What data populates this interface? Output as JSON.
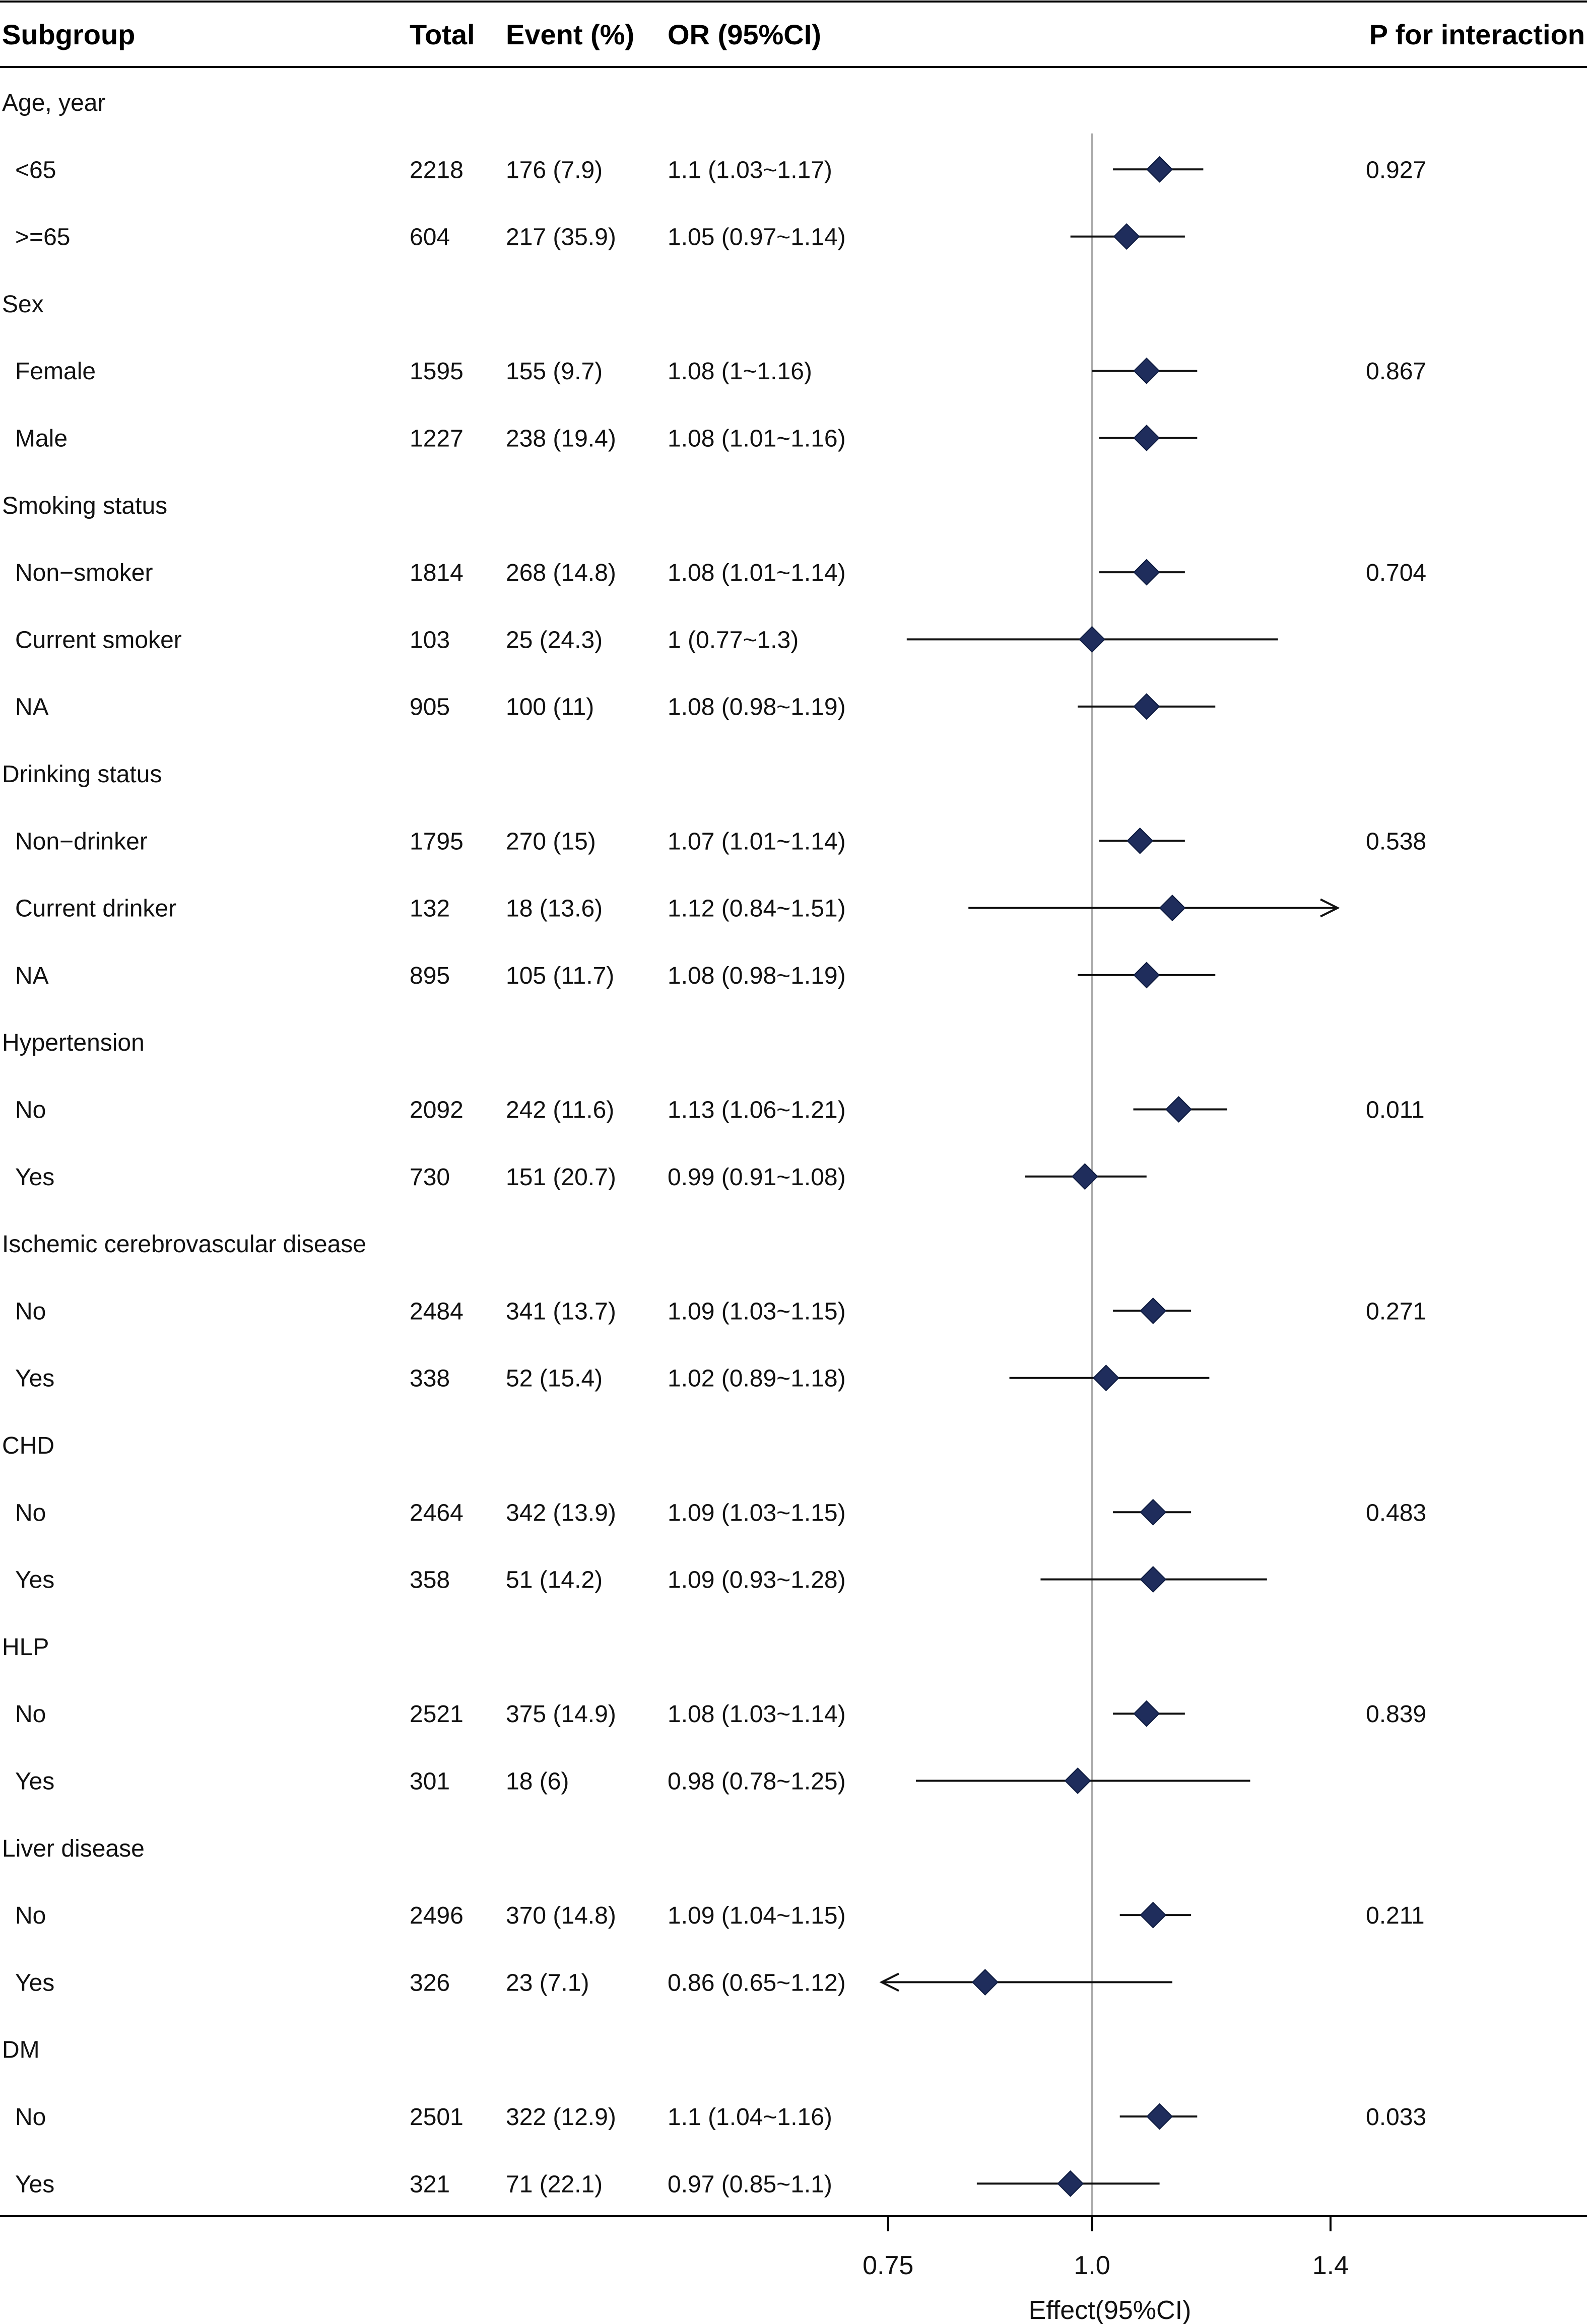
{
  "chart_data": {
    "type": "forest",
    "columns": {
      "subgroup": "Subgroup",
      "total": "Total",
      "event": "Event (%)",
      "or": "OR (95%CI)",
      "p": "P for interaction"
    },
    "xlabel": "Effect(95%CI)",
    "ticks": [
      "0.75",
      "1.0",
      "1.4"
    ],
    "tick_values": [
      0.75,
      1.0,
      1.4
    ],
    "reference_value": 1.0,
    "colors": {
      "marker": "#1f2d5c",
      "reference_line": "#aaaaaa",
      "line": "#111111"
    },
    "rows": [
      {
        "kind": "group",
        "label": "Age, year"
      },
      {
        "kind": "item",
        "label": "<65",
        "total": "2218",
        "event": "176 (7.9)",
        "or_text": "1.1 (1.03~1.17)",
        "or": 1.1,
        "lo": 1.03,
        "hi": 1.17,
        "p": "0.927"
      },
      {
        "kind": "item",
        "label": ">=65",
        "total": "604",
        "event": "217 (35.9)",
        "or_text": "1.05 (0.97~1.14)",
        "or": 1.05,
        "lo": 0.97,
        "hi": 1.14,
        "p": ""
      },
      {
        "kind": "group",
        "label": "Sex"
      },
      {
        "kind": "item",
        "label": "Female",
        "total": "1595",
        "event": "155 (9.7)",
        "or_text": "1.08 (1~1.16)",
        "or": 1.08,
        "lo": 1.0,
        "hi": 1.16,
        "p": "0.867"
      },
      {
        "kind": "item",
        "label": "Male",
        "total": "1227",
        "event": "238 (19.4)",
        "or_text": "1.08 (1.01~1.16)",
        "or": 1.08,
        "lo": 1.01,
        "hi": 1.16,
        "p": ""
      },
      {
        "kind": "group",
        "label": "Smoking status"
      },
      {
        "kind": "item",
        "label": "Non−smoker",
        "total": "1814",
        "event": "268 (14.8)",
        "or_text": "1.08 (1.01~1.14)",
        "or": 1.08,
        "lo": 1.01,
        "hi": 1.14,
        "p": "0.704"
      },
      {
        "kind": "item",
        "label": "Current smoker",
        "total": "103",
        "event": "25 (24.3)",
        "or_text": "1 (0.77~1.3)",
        "or": 1.0,
        "lo": 0.77,
        "hi": 1.3,
        "p": ""
      },
      {
        "kind": "item",
        "label": "NA",
        "total": "905",
        "event": "100 (11)",
        "or_text": "1.08 (0.98~1.19)",
        "or": 1.08,
        "lo": 0.98,
        "hi": 1.19,
        "p": ""
      },
      {
        "kind": "group",
        "label": "Drinking status"
      },
      {
        "kind": "item",
        "label": "Non−drinker",
        "total": "1795",
        "event": "270 (15)",
        "or_text": "1.07 (1.01~1.14)",
        "or": 1.07,
        "lo": 1.01,
        "hi": 1.14,
        "p": "0.538"
      },
      {
        "kind": "item",
        "label": "Current drinker",
        "total": "132",
        "event": "18 (13.6)",
        "or_text": "1.12 (0.84~1.51)",
        "or": 1.12,
        "lo": 0.84,
        "hi": 1.51,
        "p": ""
      },
      {
        "kind": "item",
        "label": "NA",
        "total": "895",
        "event": "105 (11.7)",
        "or_text": "1.08 (0.98~1.19)",
        "or": 1.08,
        "lo": 0.98,
        "hi": 1.19,
        "p": ""
      },
      {
        "kind": "group",
        "label": "Hypertension"
      },
      {
        "kind": "item",
        "label": "No",
        "total": "2092",
        "event": "242 (11.6)",
        "or_text": "1.13 (1.06~1.21)",
        "or": 1.13,
        "lo": 1.06,
        "hi": 1.21,
        "p": "0.011"
      },
      {
        "kind": "item",
        "label": "Yes",
        "total": "730",
        "event": "151 (20.7)",
        "or_text": "0.99 (0.91~1.08)",
        "or": 0.99,
        "lo": 0.91,
        "hi": 1.08,
        "p": ""
      },
      {
        "kind": "group",
        "label": "Ischemic cerebrovascular disease"
      },
      {
        "kind": "item",
        "label": "No",
        "total": "2484",
        "event": "341 (13.7)",
        "or_text": "1.09 (1.03~1.15)",
        "or": 1.09,
        "lo": 1.03,
        "hi": 1.15,
        "p": "0.271"
      },
      {
        "kind": "item",
        "label": "Yes",
        "total": "338",
        "event": "52 (15.4)",
        "or_text": "1.02 (0.89~1.18)",
        "or": 1.02,
        "lo": 0.89,
        "hi": 1.18,
        "p": ""
      },
      {
        "kind": "group",
        "label": "CHD"
      },
      {
        "kind": "item",
        "label": "No",
        "total": "2464",
        "event": "342 (13.9)",
        "or_text": "1.09 (1.03~1.15)",
        "or": 1.09,
        "lo": 1.03,
        "hi": 1.15,
        "p": "0.483"
      },
      {
        "kind": "item",
        "label": "Yes",
        "total": "358",
        "event": "51 (14.2)",
        "or_text": "1.09 (0.93~1.28)",
        "or": 1.09,
        "lo": 0.93,
        "hi": 1.28,
        "p": ""
      },
      {
        "kind": "group",
        "label": "HLP"
      },
      {
        "kind": "item",
        "label": "No",
        "total": "2521",
        "event": "375 (14.9)",
        "or_text": "1.08 (1.03~1.14)",
        "or": 1.08,
        "lo": 1.03,
        "hi": 1.14,
        "p": "0.839"
      },
      {
        "kind": "item",
        "label": "Yes",
        "total": "301",
        "event": "18 (6)",
        "or_text": "0.98 (0.78~1.25)",
        "or": 0.98,
        "lo": 0.78,
        "hi": 1.25,
        "p": ""
      },
      {
        "kind": "group",
        "label": "Liver disease"
      },
      {
        "kind": "item",
        "label": "No",
        "total": "2496",
        "event": "370 (14.8)",
        "or_text": "1.09 (1.04~1.15)",
        "or": 1.09,
        "lo": 1.04,
        "hi": 1.15,
        "p": "0.211"
      },
      {
        "kind": "item",
        "label": "Yes",
        "total": "326",
        "event": "23 (7.1)",
        "or_text": "0.86 (0.65~1.12)",
        "or": 0.86,
        "lo": 0.65,
        "hi": 1.12,
        "p": ""
      },
      {
        "kind": "group",
        "label": "DM"
      },
      {
        "kind": "item",
        "label": "No",
        "total": "2501",
        "event": "322 (12.9)",
        "or_text": "1.1 (1.04~1.16)",
        "or": 1.1,
        "lo": 1.04,
        "hi": 1.16,
        "p": "0.033"
      },
      {
        "kind": "item",
        "label": "Yes",
        "total": "321",
        "event": "71 (22.1)",
        "or_text": "0.97 (0.85~1.1)",
        "or": 0.97,
        "lo": 0.85,
        "hi": 1.1,
        "p": ""
      }
    ]
  }
}
